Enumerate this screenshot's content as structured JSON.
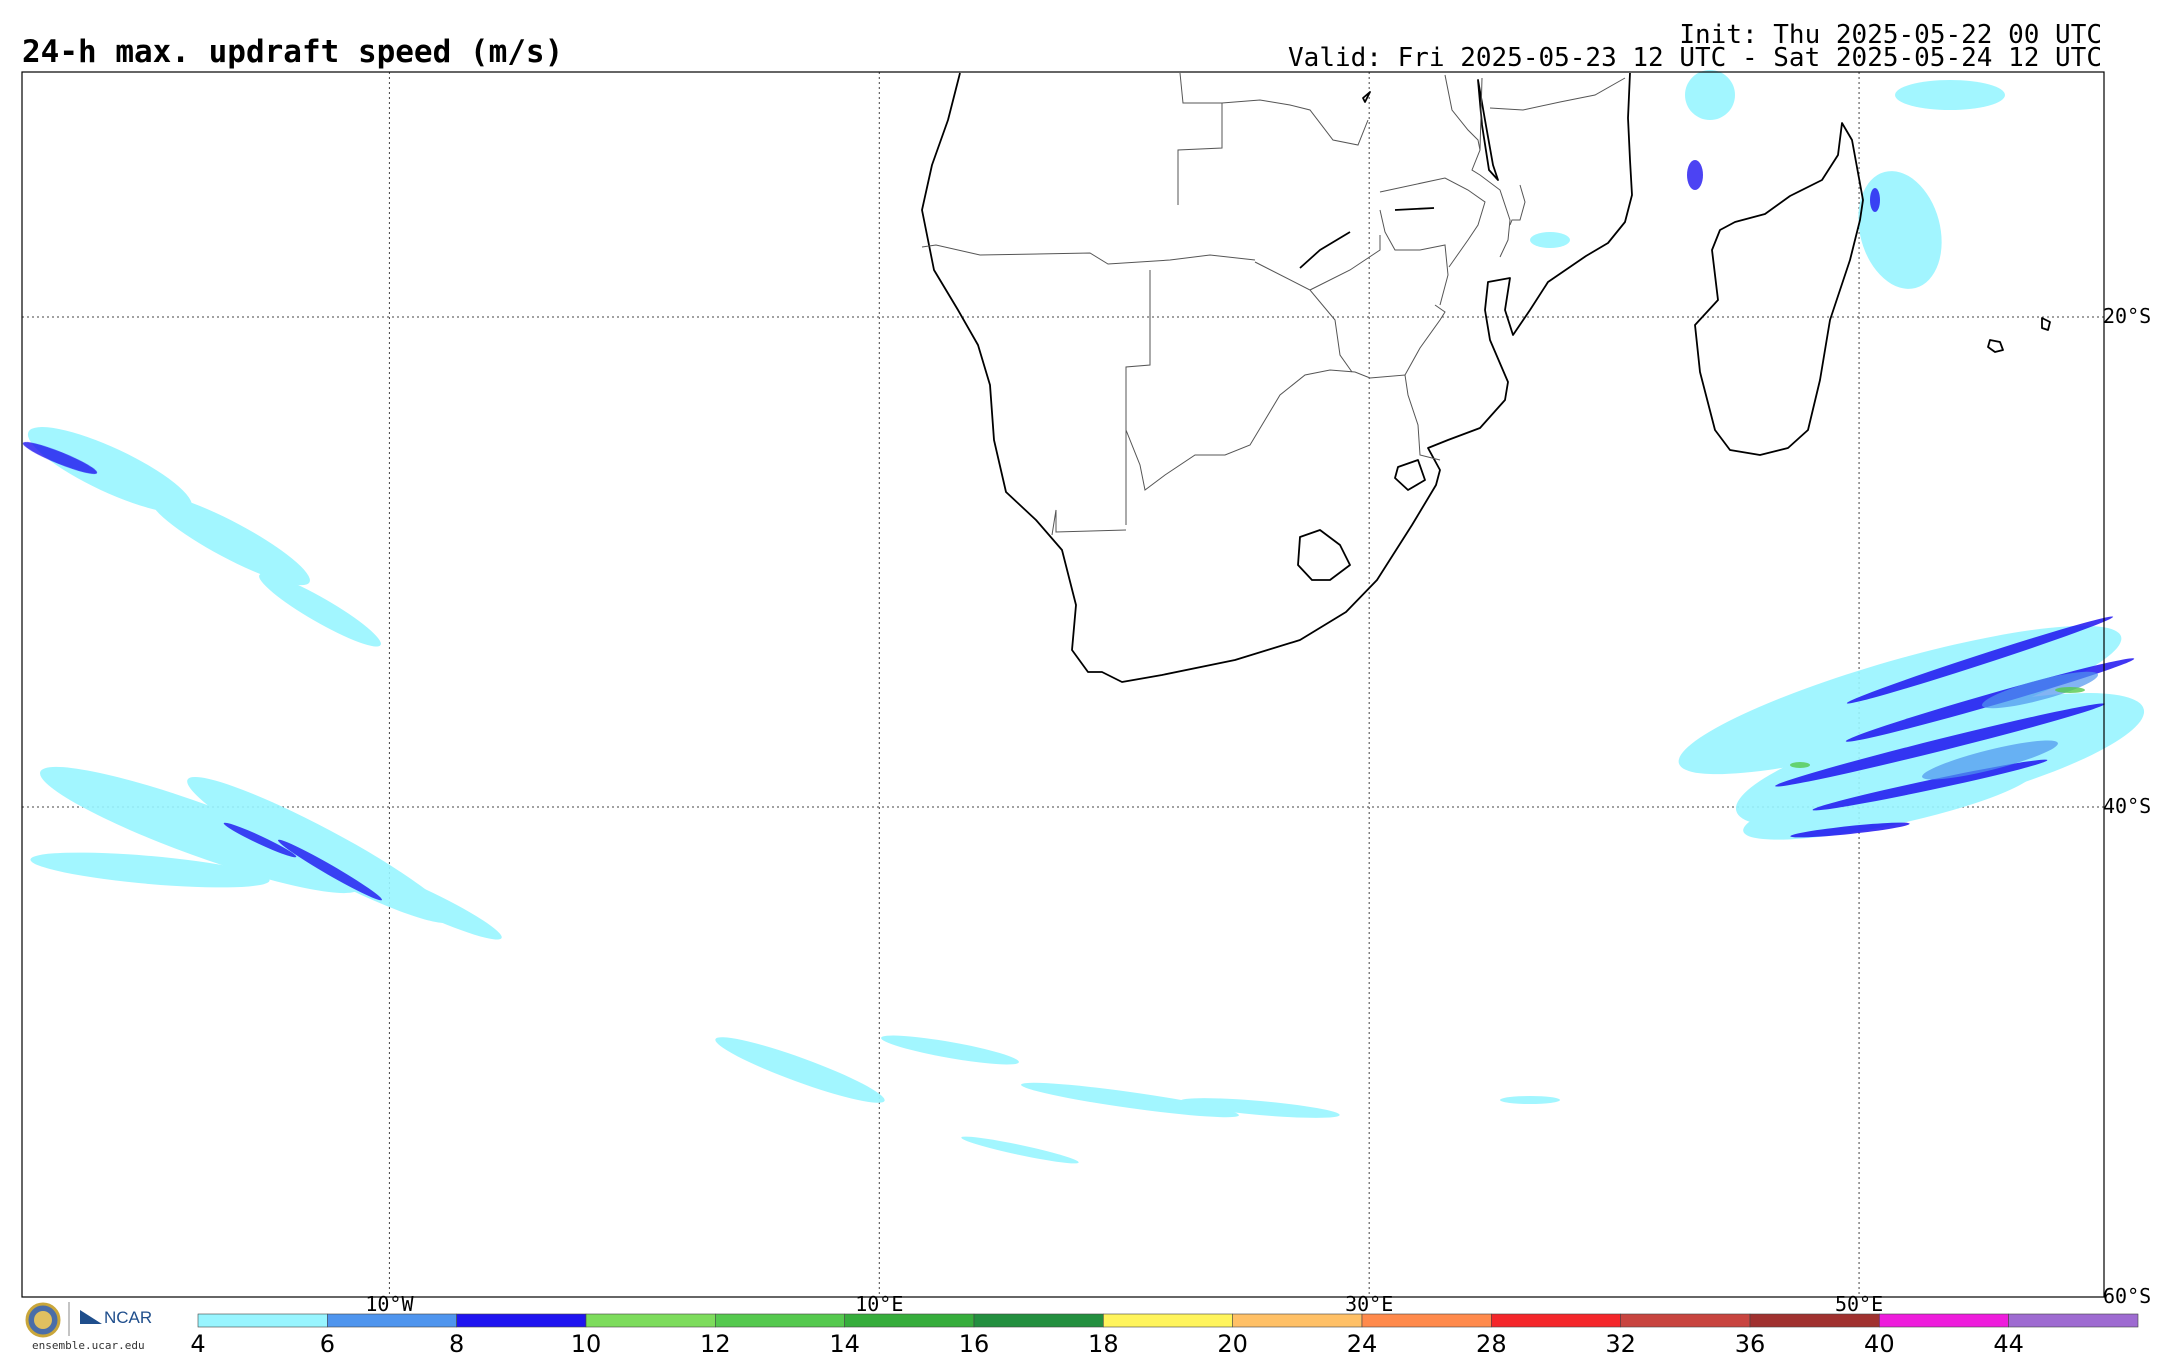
{
  "header": {
    "title": "24-h max. updraft speed (m/s)",
    "init": "Init: Thu 2025-05-22 00 UTC",
    "valid": "Valid: Fri 2025-05-23 12 UTC - Sat 2025-05-24 12 UTC"
  },
  "map": {
    "extent": {
      "lon": [
        -25,
        60
      ],
      "lat": [
        -60,
        -10
      ]
    },
    "grid_on": true,
    "lon_ticks": [
      {
        "value": -10,
        "label": "10°W"
      },
      {
        "value": 10,
        "label": "10°E"
      },
      {
        "value": 30,
        "label": "30°E"
      },
      {
        "value": 50,
        "label": "50°E"
      }
    ],
    "lat_ticks": [
      {
        "value": -20,
        "label": "20°S"
      },
      {
        "value": -40,
        "label": "40°S"
      },
      {
        "value": -60,
        "label": "60°S"
      }
    ],
    "coastline_color": "#000000",
    "border_color": "#555555"
  },
  "colorbar": {
    "levels": [
      "4",
      "6",
      "8",
      "10",
      "12",
      "14",
      "16",
      "18",
      "20",
      "24",
      "28",
      "32",
      "36",
      "40",
      "44"
    ],
    "colors": [
      "#98f5ff",
      "#4f95ee",
      "#1f14f0",
      "#7ddc5c",
      "#55c94e",
      "#36ad3c",
      "#238f3f",
      "#fff45c",
      "#ffc066",
      "#ff8a4c",
      "#f4262a",
      "#c8443f",
      "#a0312f",
      "#ee1cdc",
      "#9e6bd1"
    ]
  },
  "branding": {
    "url": "ensemble.ucar.edu",
    "org1": "NSF",
    "org2": "NCAR"
  }
}
